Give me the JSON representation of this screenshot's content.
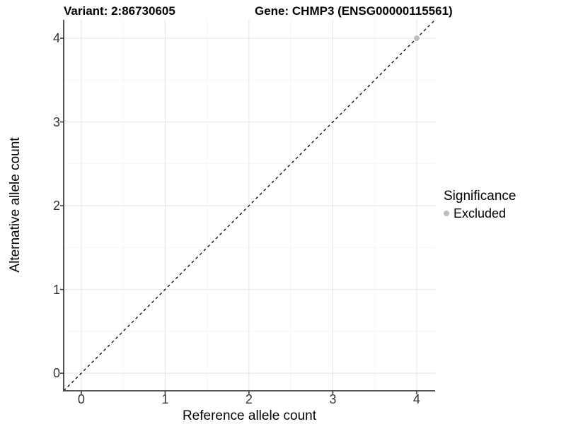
{
  "title": {
    "variant": "Variant: 2:86730605",
    "gene": "Gene: CHMP3 (ENSG00000115561)"
  },
  "chart_data": {
    "type": "scatter",
    "xlabel": "Reference allele count",
    "ylabel": "Alternative allele count",
    "xlim": [
      -0.21,
      4.22
    ],
    "ylim": [
      -0.21,
      4.22
    ],
    "xticks": [
      0,
      1,
      2,
      3,
      4
    ],
    "yticks": [
      0,
      1,
      2,
      3,
      4
    ],
    "minor_xticks": [
      0.5,
      1.5,
      2.5,
      3.5
    ],
    "minor_yticks": [
      0.5,
      1.5,
      2.5,
      3.5
    ],
    "grid": true,
    "reference_line": {
      "slope": 1,
      "intercept": 0,
      "style": "dashed",
      "color": "#000000"
    },
    "series": [
      {
        "name": "Excluded",
        "color": "#bebebe",
        "points": [
          {
            "x": 4,
            "y": 4
          }
        ]
      }
    ],
    "legend": {
      "title": "Significance",
      "position": "right",
      "entries": [
        {
          "label": "Excluded",
          "color": "#bebebe"
        }
      ]
    }
  },
  "colors": {
    "background": "#ffffff",
    "grid_major": "#e9e9e9",
    "grid_minor": "#f4f4f4",
    "axis_line": "#3f3f3f",
    "tick_mark": "#333333",
    "tick_label": "#333333",
    "point_excluded": "#bebebe"
  }
}
